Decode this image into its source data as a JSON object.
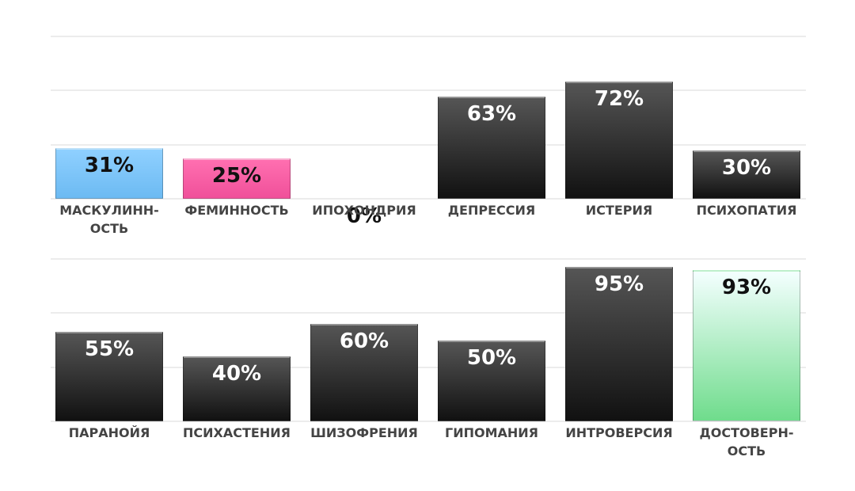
{
  "chart_data": [
    {
      "type": "bar",
      "categories": [
        "МАСКУЛИНН-\nОСТЬ",
        "ФЕМИННОСТЬ",
        "ИПОХОНДРИЯ",
        "ДЕПРЕССИЯ",
        "ИСТЕРИЯ",
        "ПСИХОПАТИЯ"
      ],
      "values": [
        31,
        25,
        0,
        63,
        72,
        30
      ],
      "value_labels": [
        "31%",
        "25%",
        "0%",
        "63%",
        "72%",
        "30%"
      ],
      "gradients": [
        [
          "#8fd0ff",
          "#6cbaf2"
        ],
        [
          "#ff6fb0",
          "#f0509a"
        ],
        [
          "#555555",
          "#111111"
        ],
        [
          "#555555",
          "#111111"
        ],
        [
          "#555555",
          "#111111"
        ],
        [
          "#555555",
          "#111111"
        ]
      ],
      "ylim": [
        0,
        100
      ],
      "yticks": [
        0,
        33.3,
        66.7,
        100
      ],
      "grid": true
    },
    {
      "type": "bar",
      "categories": [
        "ПАРАНОЙЯ",
        "ПСИХАСТЕНИЯ",
        "ШИЗОФРЕНИЯ",
        "ГИПОМАНИЯ",
        "ИНТРОВЕРСИЯ",
        "ДОСТОВЕРН-\nОСТЬ"
      ],
      "values": [
        55,
        40,
        60,
        50,
        95,
        93
      ],
      "value_labels": [
        "55%",
        "40%",
        "60%",
        "50%",
        "95%",
        "93%"
      ],
      "gradients": [
        [
          "#555555",
          "#111111"
        ],
        [
          "#555555",
          "#111111"
        ],
        [
          "#555555",
          "#111111"
        ],
        [
          "#555555",
          "#111111"
        ],
        [
          "#555555",
          "#111111"
        ],
        [
          "#f4ffff",
          "#6fdc8c"
        ]
      ],
      "ylim": [
        0,
        100
      ],
      "yticks": [
        0,
        33.3,
        66.7,
        100
      ],
      "grid": true
    }
  ]
}
